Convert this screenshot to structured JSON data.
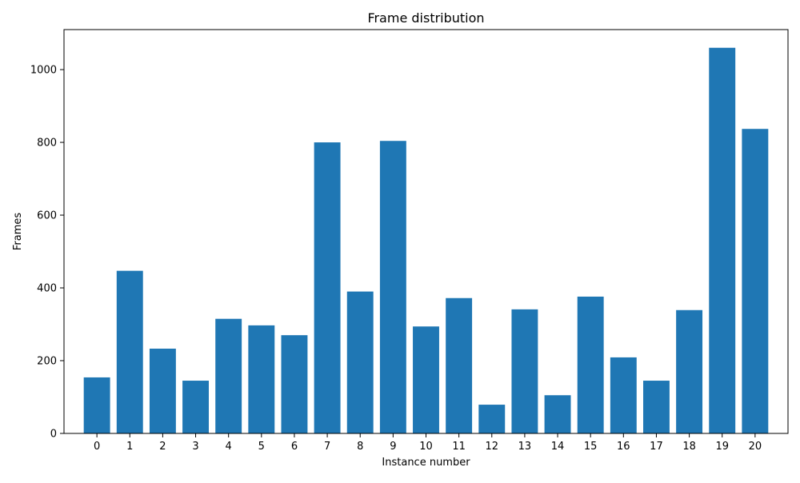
{
  "chart_data": {
    "type": "bar",
    "title": "Frame distribution",
    "xlabel": "Instance number",
    "ylabel": "Frames",
    "categories": [
      "0",
      "1",
      "2",
      "3",
      "4",
      "5",
      "6",
      "7",
      "8",
      "9",
      "10",
      "11",
      "12",
      "13",
      "14",
      "15",
      "16",
      "17",
      "18",
      "19",
      "20"
    ],
    "values": [
      154,
      447,
      233,
      145,
      315,
      297,
      270,
      800,
      390,
      804,
      294,
      372,
      79,
      341,
      105,
      376,
      209,
      145,
      339,
      1060,
      837
    ],
    "ylim": [
      0,
      1110
    ],
    "yticks": [
      0,
      200,
      400,
      600,
      800,
      1000
    ],
    "bar_color": "#1f77b4",
    "grid": false,
    "legend": "none"
  }
}
